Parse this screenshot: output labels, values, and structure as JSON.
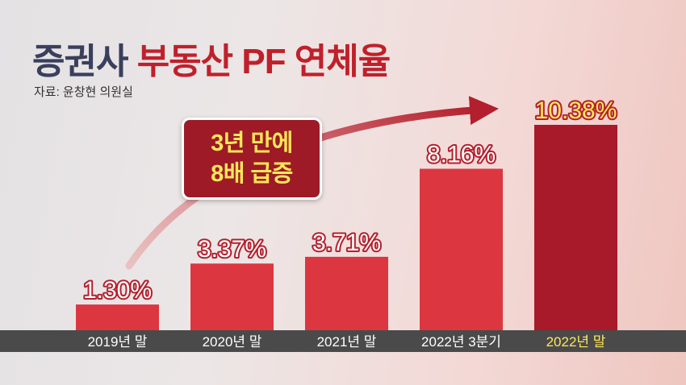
{
  "header": {
    "title_part1": "증권사",
    "title_part2": "부동산 PF 연체율",
    "source": "자료: 윤창현 의원실"
  },
  "badge": {
    "line1": "3년 만에",
    "line2": "8배 급증"
  },
  "colors": {
    "bar": "#dc3740",
    "bar_highlight": "#a8192a",
    "label_text": "#ffffff",
    "label_highlight": "#ffe75a",
    "axis_band": "#4a4a4a"
  },
  "chart_data": {
    "type": "bar",
    "title": "",
    "xlabel": "",
    "ylabel": "",
    "categories": [
      "2019년 말",
      "2020년 말",
      "2021년 말",
      "2022년 3분기",
      "2022년 말"
    ],
    "values": [
      1.3,
      3.37,
      3.71,
      8.16,
      10.38
    ],
    "value_labels": [
      "1.30%",
      "3.37%",
      "3.71%",
      "8.16%",
      "10.38%"
    ],
    "unit": "%",
    "highlight_index": 4,
    "ylim": [
      0,
      10.38
    ],
    "grid": false
  }
}
